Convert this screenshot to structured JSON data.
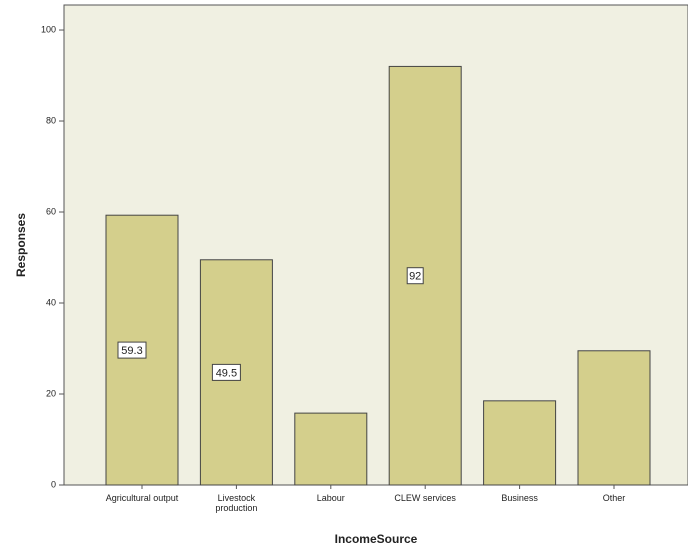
{
  "chart_data": {
    "type": "bar",
    "categories": [
      "Agricultural output",
      "Livestock production",
      "Labour",
      "CLEW services",
      "Business",
      "Other"
    ],
    "values": [
      59.3,
      49.5,
      15.8,
      92,
      18.5,
      29.5
    ],
    "value_labels": [
      "59.3",
      "49.5",
      null,
      "92",
      null,
      null
    ],
    "color": "#d4cf8c",
    "xlabel": "IncomeSource",
    "ylabel": "Responses",
    "ylim": [
      0,
      105.5
    ],
    "yticks": [
      0,
      20,
      40,
      60,
      80,
      100
    ],
    "grid": false
  }
}
